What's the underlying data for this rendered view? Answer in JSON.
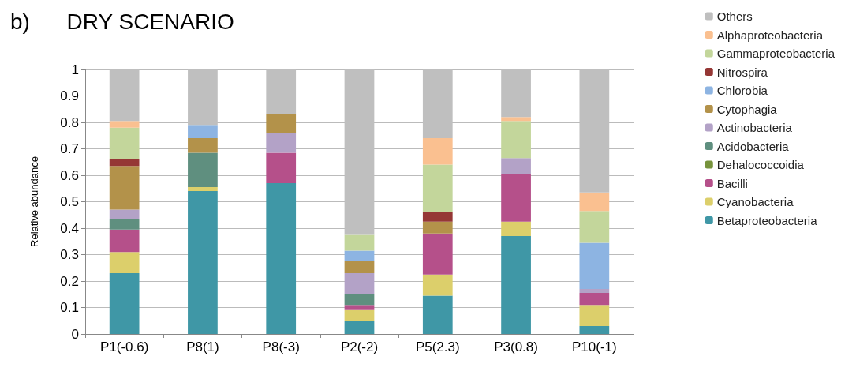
{
  "chart_data": {
    "type": "bar",
    "stacked": true,
    "title": "b)      DRY SCENARIO",
    "ylabel": "Relative abundance",
    "categories": [
      "P1(-0.6)",
      "P8(1)",
      "P8(-3)",
      "P2(-2)",
      "P5(2.3)",
      "P3(0.8)",
      "P10(-1)"
    ],
    "series": [
      {
        "name": "Betaproteobacteria",
        "color": "#3f97a6",
        "values": [
          0.23,
          0.54,
          0.57,
          0.05,
          0.145,
          0.37,
          0.03
        ]
      },
      {
        "name": "Cyanobacteria",
        "color": "#dccf6b",
        "values": [
          0.08,
          0.015,
          0,
          0.04,
          0.08,
          0.055,
          0.08
        ]
      },
      {
        "name": "Bacilli",
        "color": "#b5508a",
        "values": [
          0.085,
          0,
          0.115,
          0.02,
          0.155,
          0.18,
          0.045
        ]
      },
      {
        "name": "Dehalococcoidia",
        "color": "#77933c",
        "values": [
          0,
          0,
          0,
          0,
          0,
          0,
          0
        ]
      },
      {
        "name": "Acidobacteria",
        "color": "#5f8f7f",
        "values": [
          0.04,
          0.13,
          0,
          0.04,
          0,
          0,
          0
        ]
      },
      {
        "name": "Actinobacteria",
        "color": "#b3a2c7",
        "values": [
          0.035,
          0,
          0.075,
          0.08,
          0,
          0.06,
          0.015
        ]
      },
      {
        "name": "Cytophagia",
        "color": "#b3924a",
        "values": [
          0.165,
          0.055,
          0.07,
          0.045,
          0.045,
          0,
          0
        ]
      },
      {
        "name": "Chlorobia",
        "color": "#8db4e2",
        "values": [
          0,
          0.05,
          0,
          0.04,
          0,
          0,
          0.175
        ]
      },
      {
        "name": "Nitrospira",
        "color": "#953735",
        "values": [
          0.025,
          0,
          0,
          0,
          0.035,
          0,
          0
        ]
      },
      {
        "name": "Gammaproteobacteria",
        "color": "#c3d69b",
        "values": [
          0.12,
          0,
          0,
          0.06,
          0.18,
          0.14,
          0.12
        ]
      },
      {
        "name": "Alphaproteobacteria",
        "color": "#fac090",
        "values": [
          0.025,
          0,
          0,
          0,
          0.1,
          0.015,
          0.07
        ]
      },
      {
        "name": "Others",
        "color": "#bfbfbf",
        "values": [
          0.195,
          0.21,
          0.17,
          0.625,
          0.26,
          0.18,
          0.465
        ]
      }
    ],
    "ylim": [
      0,
      1
    ],
    "yticks": [
      0,
      0.1,
      0.2,
      0.3,
      0.4,
      0.5,
      0.6,
      0.7,
      0.8,
      0.9,
      1
    ],
    "grid": "y",
    "legend": "right"
  }
}
